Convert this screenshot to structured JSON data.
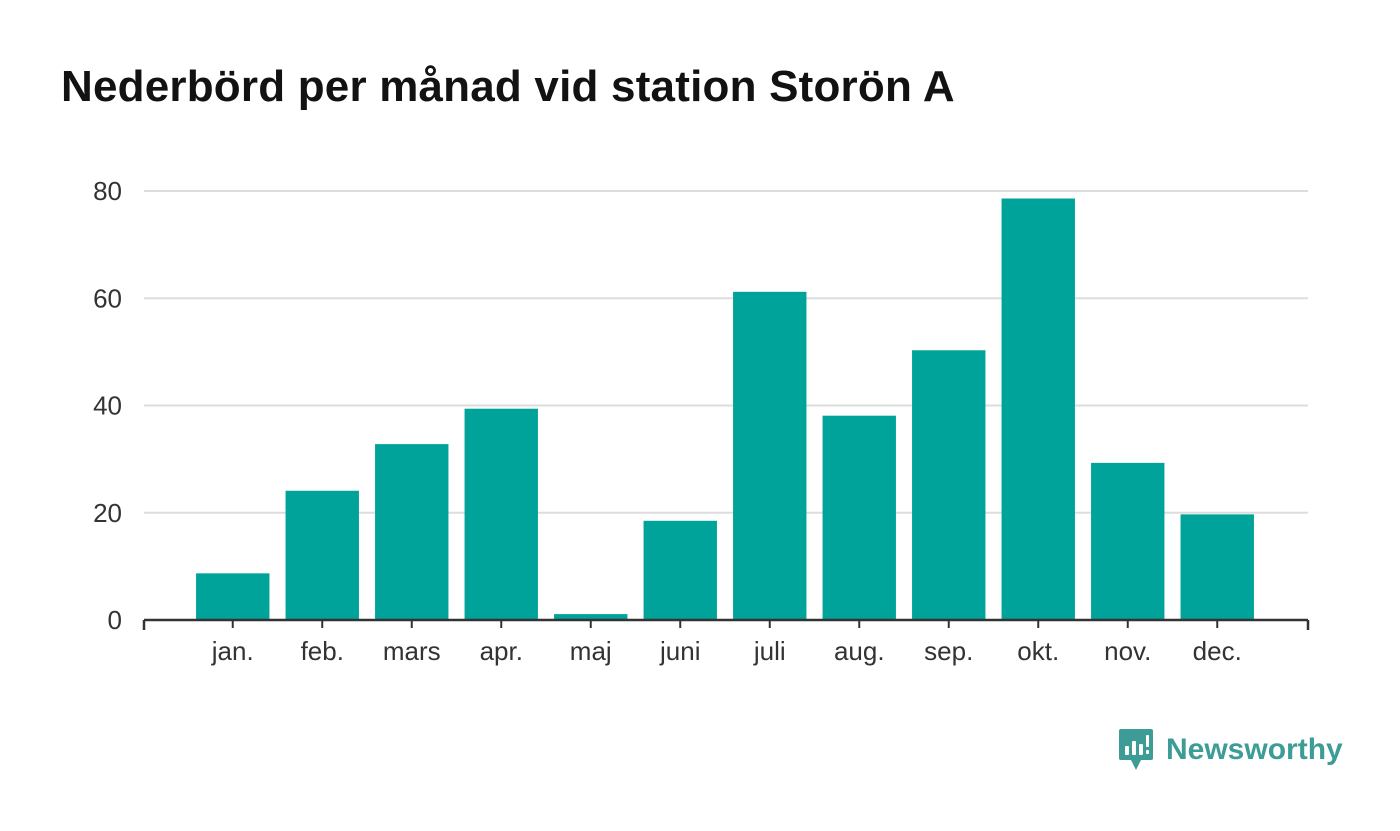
{
  "chart_data": {
    "type": "bar",
    "title": "Nederbörd per månad vid station Storön A",
    "xlabel": "",
    "ylabel": "",
    "categories": [
      "jan.",
      "feb.",
      "mars",
      "apr.",
      "maj",
      "juni",
      "juli",
      "aug.",
      "sep.",
      "okt.",
      "nov.",
      "dec."
    ],
    "values": [
      8.7,
      24.1,
      32.8,
      39.4,
      1.1,
      18.5,
      61.2,
      38.1,
      50.3,
      78.6,
      29.3,
      19.7
    ],
    "ylim": [
      0,
      80
    ],
    "yticks": [
      "0",
      "20",
      "40",
      "60",
      "80"
    ],
    "grid": true,
    "legend": "none",
    "bar_color": "#00a39a",
    "grid_color": "#dddddd",
    "axis_color": "#333333"
  },
  "brand": {
    "name": "Newsworthy",
    "color": "#3d9c96",
    "icon": "newsworthy-logo-icon"
  }
}
